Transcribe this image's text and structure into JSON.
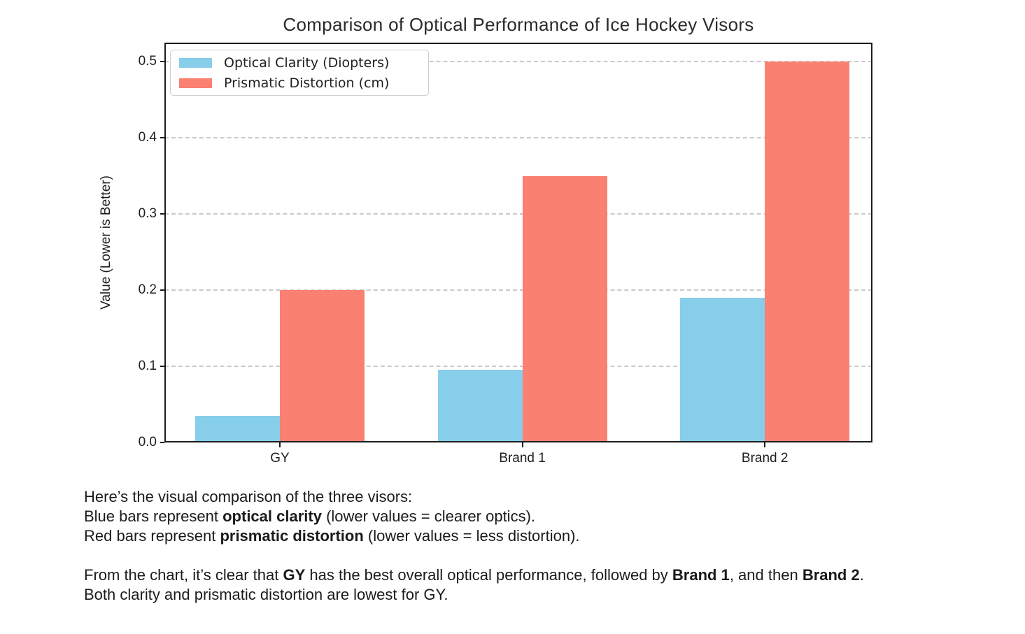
{
  "chart_data": {
    "type": "bar",
    "title": "Comparison of Optical Performance of Ice Hockey Visors",
    "categories": [
      "GY",
      "Brand 1",
      "Brand 2"
    ],
    "series": [
      {
        "name": "Optical Clarity (Diopters)",
        "color": "#87CEEB",
        "values": [
          0.035,
          0.095,
          0.19
        ]
      },
      {
        "name": "Prismatic Distortion (cm)",
        "color": "#FA8072",
        "values": [
          0.2,
          0.35,
          0.5
        ]
      }
    ],
    "xlabel": "",
    "ylabel": "Value (Lower is Better)",
    "ylim": [
      0,
      0.525
    ],
    "yticks": [
      "0.0",
      "0.1",
      "0.2",
      "0.3",
      "0.4",
      "0.5"
    ],
    "grid": "horizontal dashed, behind bars",
    "legend_position": "upper left"
  },
  "caption": {
    "paragraphs": [
      {
        "lines": [
          [
            {
              "t": "Here’s the visual comparison of the three visors:",
              "b": false
            }
          ],
          [
            {
              "t": "Blue bars represent ",
              "b": false
            },
            {
              "t": "optical clarity",
              "b": true
            },
            {
              "t": " (lower values = clearer optics).",
              "b": false
            }
          ],
          [
            {
              "t": "Red bars represent ",
              "b": false
            },
            {
              "t": "prismatic distortion",
              "b": true
            },
            {
              "t": " (lower values = less distortion).",
              "b": false
            }
          ]
        ]
      },
      {
        "lines": [
          [
            {
              "t": "From the chart, it’s clear that ",
              "b": false
            },
            {
              "t": "GY",
              "b": true
            },
            {
              "t": " has the best overall optical performance, followed by ",
              "b": false
            },
            {
              "t": "Brand 1",
              "b": true
            },
            {
              "t": ", and then ",
              "b": false
            },
            {
              "t": "Brand 2",
              "b": true
            },
            {
              "t": ".",
              "b": false
            }
          ],
          [
            {
              "t": "Both clarity and prismatic distortion are lowest for GY.",
              "b": false
            }
          ]
        ]
      }
    ]
  }
}
